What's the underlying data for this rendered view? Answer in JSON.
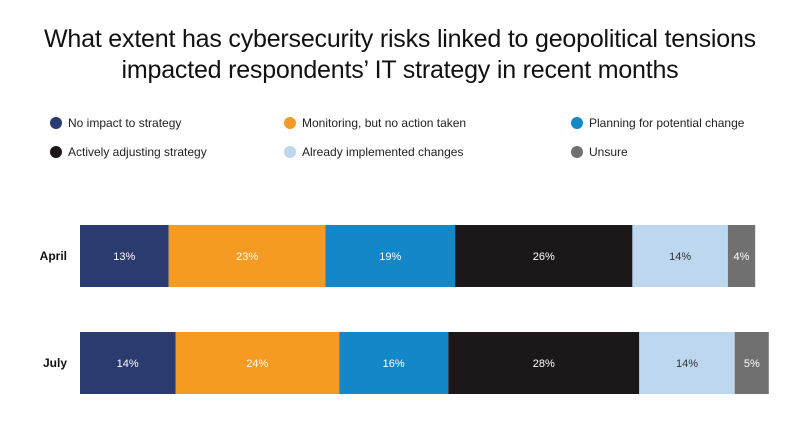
{
  "chart_data": {
    "type": "bar",
    "orientation": "horizontal",
    "stacked": true,
    "title_lines": [
      "What extent has cybersecurity risks linked to geopolitical tensions",
      "impacted respondents’ IT strategy in recent months"
    ],
    "categories": [
      "April",
      "July"
    ],
    "series": [
      {
        "name": "No impact to strategy",
        "color": "#2b3a6f",
        "label_color": "#ffffff",
        "values": [
          13,
          14
        ]
      },
      {
        "name": "Monitoring, but no action taken",
        "color": "#f59a23",
        "label_color": "#ffffff",
        "values": [
          23,
          24
        ]
      },
      {
        "name": "Planning for potential change",
        "color": "#1487c9",
        "label_color": "#ffffff",
        "values": [
          19,
          16
        ]
      },
      {
        "name": "Actively adjusting strategy",
        "color": "#1c1819",
        "label_color": "#ffffff",
        "values": [
          26,
          28
        ]
      },
      {
        "name": "Already implemented changes",
        "color": "#bdd7ee",
        "label_color": "#333333",
        "values": [
          14,
          14
        ]
      },
      {
        "name": "Unsure",
        "color": "#707070",
        "label_color": "#ffffff",
        "values": [
          4,
          5
        ]
      }
    ],
    "value_suffix": "%",
    "xlim": [
      0,
      100
    ],
    "legend_position": "top",
    "grid": false
  }
}
